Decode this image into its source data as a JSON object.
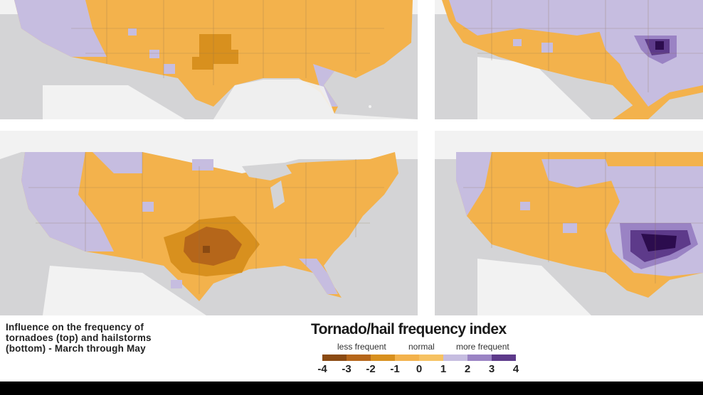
{
  "caption": {
    "line1": "Influence on the frequency of",
    "line2": "tornadoes (top) and hailstorms",
    "line3": "(bottom) - March through May"
  },
  "legend": {
    "title": "Tornado/hail frequency index",
    "less_label": "less frequent",
    "normal_label": "normal",
    "more_label": "more frequent",
    "ticks": [
      "-4",
      "-3",
      "-2",
      "-1",
      "0",
      "1",
      "2",
      "3",
      "4"
    ],
    "colors": [
      "#8a4a12",
      "#b5661a",
      "#d8901e",
      "#f3b24c",
      "#f6c262",
      "#c6bde0",
      "#9a83c4",
      "#5d3a8a",
      "#2c0c4e"
    ]
  },
  "colors": {
    "ocean": "#d4d4d6",
    "land_outside": "#f2f2f2",
    "orange": "#f3b24c",
    "dark_orange": "#d8901e",
    "darker_orange": "#b5661a",
    "darkest_orange": "#8a4a12",
    "lavender": "#c6bde0",
    "purple": "#9a83c4",
    "dark_purple": "#5d3a8a",
    "darkest_purple": "#2c0c4e"
  },
  "maps": [
    {
      "id": "tornado-neutral",
      "description_hidden": ""
    },
    {
      "id": "tornado-effect"
    },
    {
      "id": "hail-neutral"
    },
    {
      "id": "hail-effect"
    }
  ]
}
